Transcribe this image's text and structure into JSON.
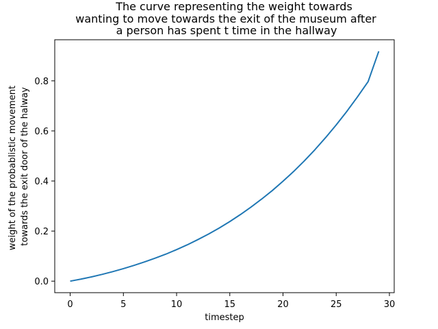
{
  "chart_data": {
    "type": "line",
    "title_lines": [
      "The curve representing the weight towards",
      "wanting to move towards the exit of the museum after",
      "a person has spent t time in the hallway"
    ],
    "xlabel": "timestep",
    "ylabel_lines": [
      "weight of the probablistic movement",
      "towards the exit door of the halway"
    ],
    "xlim": [
      -1.45,
      30.45
    ],
    "ylim": [
      -0.046,
      0.964
    ],
    "xticks": [
      0,
      5,
      10,
      15,
      20,
      25,
      30
    ],
    "xtick_labels": [
      "0",
      "5",
      "10",
      "15",
      "20",
      "25",
      "30"
    ],
    "yticks": [
      0.0,
      0.2,
      0.4,
      0.6,
      0.8
    ],
    "ytick_labels": [
      "0.0",
      "0.2",
      "0.4",
      "0.6",
      "0.8"
    ],
    "grid": false,
    "series": [
      {
        "color": "#1f77b4",
        "x": [
          0,
          1,
          2,
          3,
          4,
          5,
          6,
          7,
          8,
          9,
          10,
          11,
          12,
          13,
          14,
          15,
          16,
          17,
          18,
          19,
          20,
          21,
          22,
          23,
          24,
          25,
          26,
          27,
          28,
          29
        ],
        "y": [
          0.0,
          0.008,
          0.017,
          0.027,
          0.038,
          0.05,
          0.063,
          0.077,
          0.092,
          0.108,
          0.126,
          0.145,
          0.166,
          0.188,
          0.212,
          0.238,
          0.266,
          0.296,
          0.328,
          0.362,
          0.399,
          0.438,
          0.48,
          0.525,
          0.573,
          0.624,
          0.678,
          0.736,
          0.797,
          0.918
        ]
      }
    ]
  }
}
